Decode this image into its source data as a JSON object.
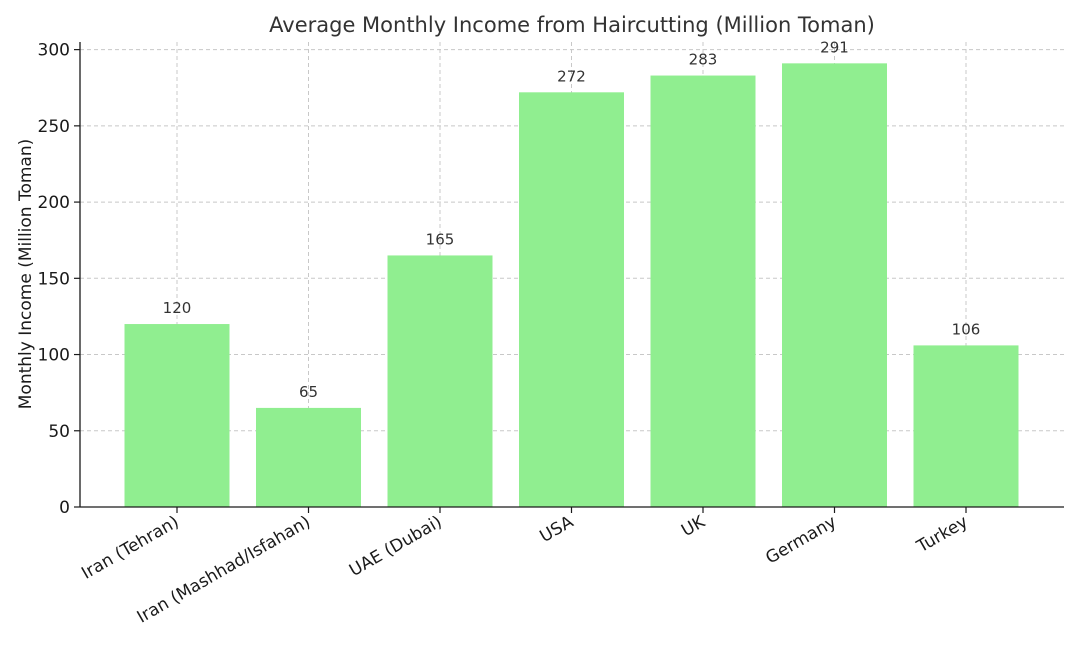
{
  "chart_data": {
    "type": "bar",
    "title": "Average Monthly Income from Haircutting (Million Toman)",
    "xlabel": "",
    "ylabel": "Monthly Income (Million Toman)",
    "categories": [
      "Iran (Tehran)",
      "Iran (Mashhad/Isfahan)",
      "UAE (Dubai)",
      "USA",
      "UK",
      "Germany",
      "Turkey"
    ],
    "values": [
      120,
      65,
      165,
      272,
      283,
      291,
      106
    ],
    "data_labels": [
      "120",
      "65",
      "165",
      "272",
      "283",
      "291",
      "106"
    ],
    "yticks": [
      0,
      50,
      100,
      150,
      200,
      250,
      300
    ],
    "ytick_labels": [
      "0",
      "50",
      "100",
      "150",
      "200",
      "250",
      "300"
    ],
    "ylim": [
      0,
      305
    ],
    "grid": true,
    "bar_color": "#90ee90"
  }
}
